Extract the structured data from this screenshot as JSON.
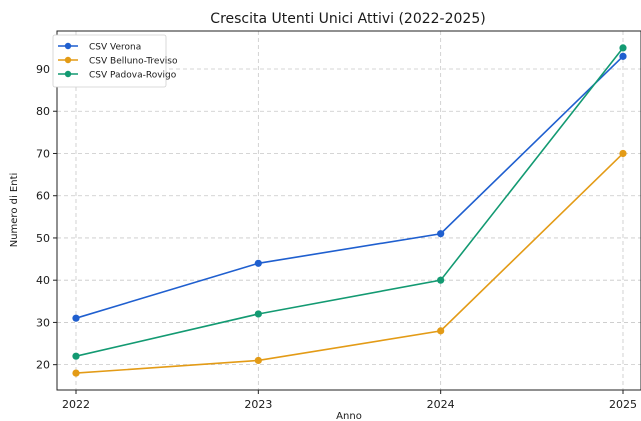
{
  "chart_data": {
    "type": "line",
    "title": "Crescita Utenti Unici Attivi (2022-2025)",
    "xlabel": "Anno",
    "ylabel": "Numero di Enti",
    "categories": [
      "2022",
      "2023",
      "2024",
      "2025"
    ],
    "yticks": [
      20,
      30,
      40,
      50,
      60,
      70,
      80,
      90
    ],
    "ylim": [
      14,
      99
    ],
    "grid": true,
    "legend_position": "top-left",
    "series": [
      {
        "name": "CSV Verona",
        "color": "#1f5fcf",
        "values": [
          31,
          44,
          51,
          93
        ]
      },
      {
        "name": "CSV Belluno-Treviso",
        "color": "#e39b16",
        "values": [
          18,
          21,
          28,
          70
        ]
      },
      {
        "name": "CSV Padova-Rovigo",
        "color": "#139a72",
        "values": [
          22,
          32,
          40,
          95
        ]
      }
    ]
  }
}
